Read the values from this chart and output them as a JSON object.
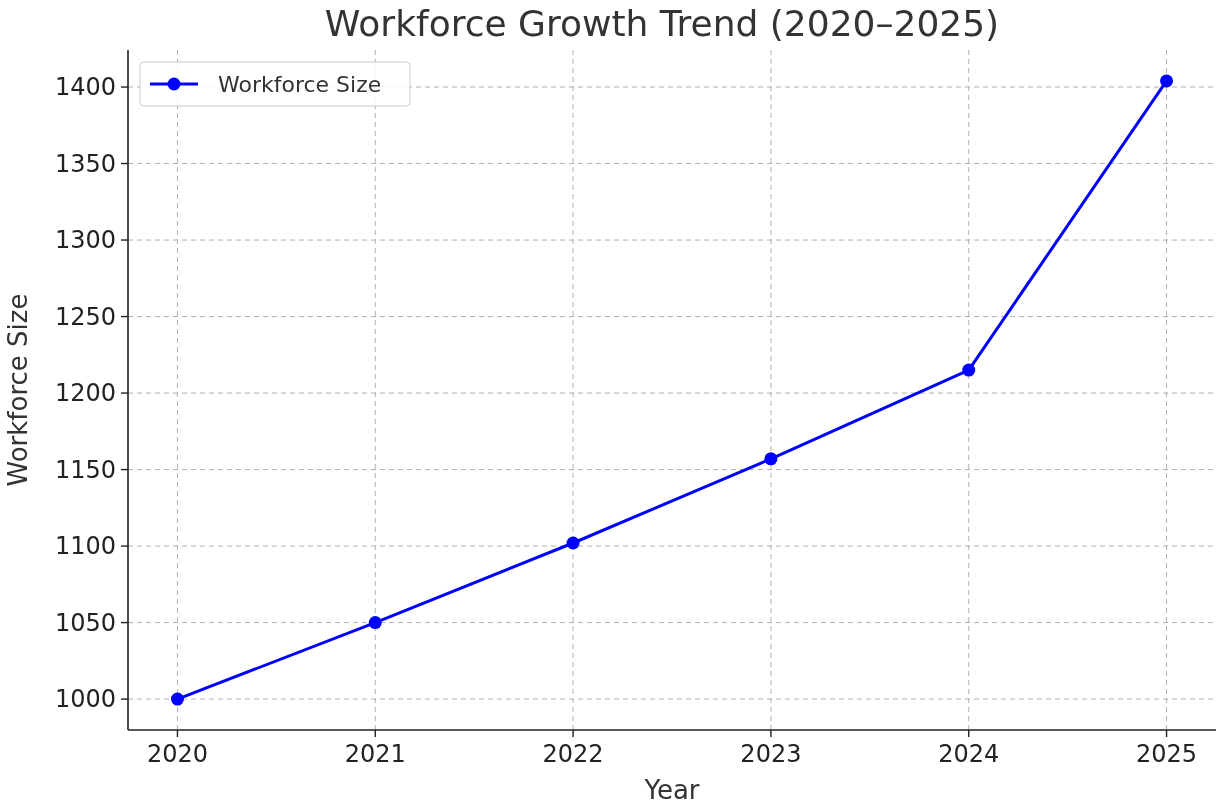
{
  "chart_data": {
    "type": "line",
    "title": "Workforce Growth Trend (2020–2025)",
    "xlabel": "Year",
    "ylabel": "Workforce Size",
    "x": [
      2020,
      2021,
      2022,
      2023,
      2024,
      2025
    ],
    "series": [
      {
        "name": "Workforce Size",
        "color": "#0000ff",
        "values": [
          1000,
          1050,
          1102,
          1157,
          1215,
          1404
        ]
      }
    ],
    "xlim": [
      2019.75,
      2025.25
    ],
    "xticks": [
      2020,
      2021,
      2022,
      2023,
      2024,
      2025
    ],
    "ylim": [
      979.8,
      1424.2
    ],
    "yticks": [
      1000,
      1050,
      1100,
      1150,
      1200,
      1250,
      1300,
      1350,
      1400
    ],
    "grid": true,
    "legend": "top left",
    "marker": "circle",
    "line_style": "solid"
  }
}
